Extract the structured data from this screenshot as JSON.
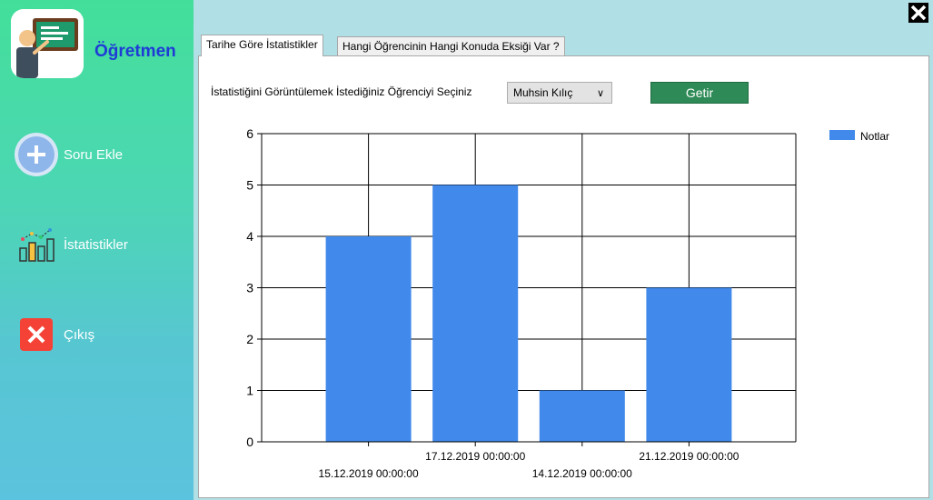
{
  "sidebar": {
    "brand": "Öğretmen",
    "items": [
      {
        "label": "Soru Ekle",
        "icon": "plus-circle-icon"
      },
      {
        "label": "İstatistikler",
        "icon": "bar-chart-icon"
      },
      {
        "label": "Çıkış",
        "icon": "close-x-icon"
      }
    ]
  },
  "tabs": [
    "Tarihe Göre İstatistikler",
    "Hangi Öğrencinin Hangi Konuda Eksiği Var ?"
  ],
  "form": {
    "label": "İstatistiğini Görüntülemek İstediğiniz Öğrenciyi Seçiniz",
    "selected_student": "Muhsin Kılıç",
    "button": "Getir"
  },
  "colors": {
    "bar": "#4189ea",
    "button": "#2e8b57",
    "sidebar_top": "#43df9a",
    "sidebar_bottom": "#5cc3de",
    "brand": "#1f3bd6"
  },
  "chart_data": {
    "type": "bar",
    "categories": [
      "15.12.2019 00:00:00",
      "17.12.2019 00:00:00",
      "14.12.2019 00:00:00",
      "21.12.2019 00:00:00"
    ],
    "series": [
      {
        "name": "Notlar",
        "values": [
          4,
          5,
          1,
          3
        ]
      }
    ],
    "ylim": [
      0,
      6
    ],
    "yticks": [
      0,
      1,
      2,
      3,
      4,
      5,
      6
    ],
    "grid": true,
    "legend": "top-right"
  }
}
